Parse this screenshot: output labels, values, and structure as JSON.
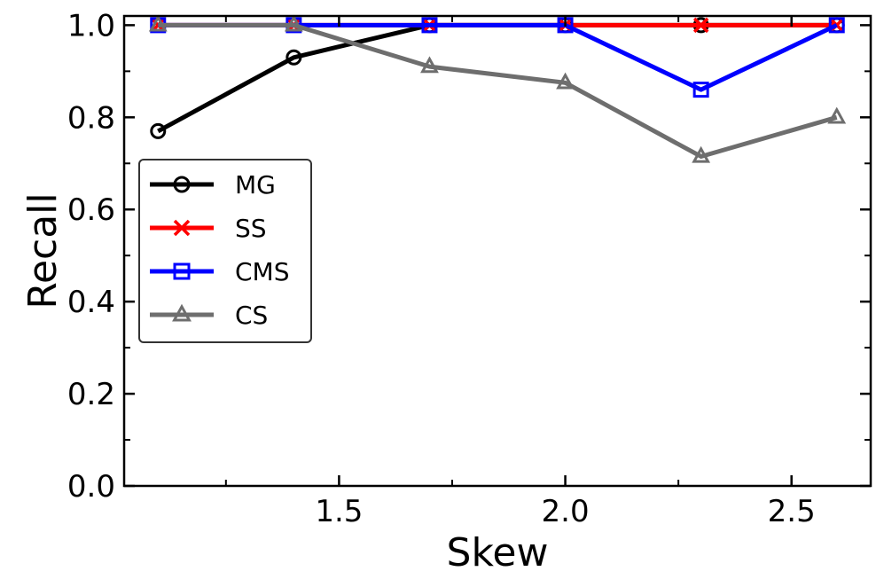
{
  "chart_data": {
    "type": "line",
    "title": "",
    "xlabel": "Skew",
    "ylabel": "Recall",
    "x": [
      1.1,
      1.4,
      1.7,
      2.0,
      2.3,
      2.6
    ],
    "xlim": [
      1.025,
      2.675
    ],
    "ylim": [
      0.0,
      1.02
    ],
    "xticks": [
      1.5,
      2.0,
      2.5
    ],
    "xtick_labels": [
      "1.5",
      "2.0",
      "2.5"
    ],
    "yticks": [
      0.0,
      0.2,
      0.4,
      0.6,
      0.8,
      1.0
    ],
    "ytick_labels": [
      "0.0",
      "0.2",
      "0.4",
      "0.6",
      "0.8",
      "1.0"
    ],
    "grid": false,
    "legend_position": "center-left",
    "series": [
      {
        "name": "MG",
        "color": "#000000",
        "marker": "circle",
        "values": [
          0.77,
          0.93,
          1.0,
          1.0,
          1.0,
          1.0
        ]
      },
      {
        "name": "SS",
        "color": "#ff0000",
        "marker": "x",
        "values": [
          1.0,
          1.0,
          1.0,
          1.0,
          1.0,
          1.0
        ]
      },
      {
        "name": "CMS",
        "color": "#0000ff",
        "marker": "square",
        "values": [
          1.0,
          1.0,
          1.0,
          1.0,
          0.86,
          1.0
        ]
      },
      {
        "name": "CS",
        "color": "#6e6e6e",
        "marker": "triangle",
        "values": [
          1.0,
          1.0,
          0.91,
          0.875,
          0.715,
          0.8
        ]
      }
    ]
  }
}
